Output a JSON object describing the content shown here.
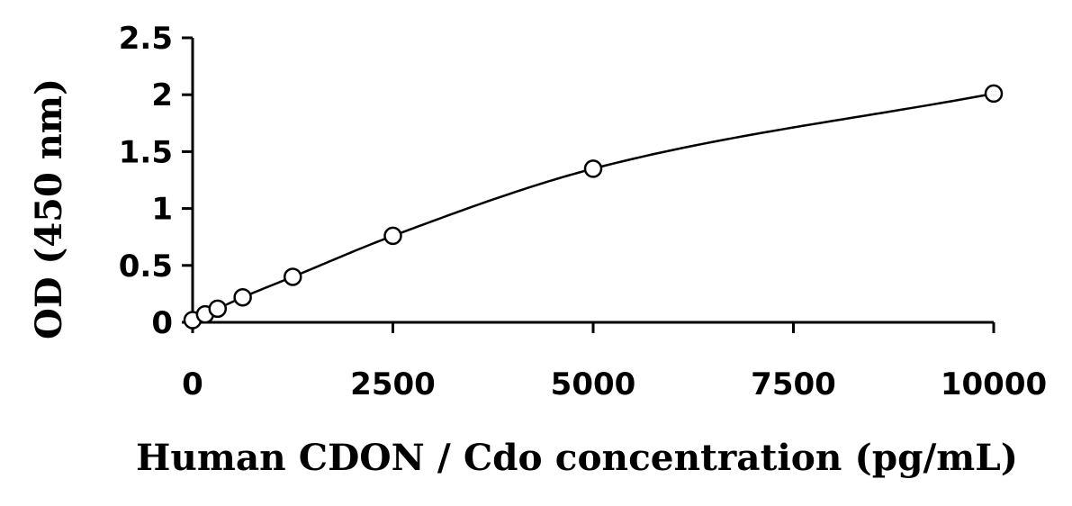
{
  "chart_data": {
    "type": "scatter",
    "title": "",
    "xlabel": "Human CDON / Cdo concentration (pg/mL)",
    "ylabel": "OD (450 nm)",
    "xlim": [
      0,
      10000
    ],
    "ylim": [
      0,
      2.5
    ],
    "x_ticks": [
      "0",
      "2500",
      "5000",
      "7500",
      "10000"
    ],
    "y_ticks": [
      "0",
      "0.5",
      "1",
      "1.5",
      "2",
      "2.5"
    ],
    "grid": false,
    "legend": "none",
    "series": [
      {
        "x": [
          0,
          156,
          312,
          625,
          1250,
          2500,
          5000,
          10000
        ],
        "y": [
          0.02,
          0.07,
          0.12,
          0.22,
          0.4,
          0.76,
          1.35,
          2.01
        ],
        "marker": "open-circle",
        "fit_curve": true,
        "color": "#000000"
      }
    ]
  }
}
